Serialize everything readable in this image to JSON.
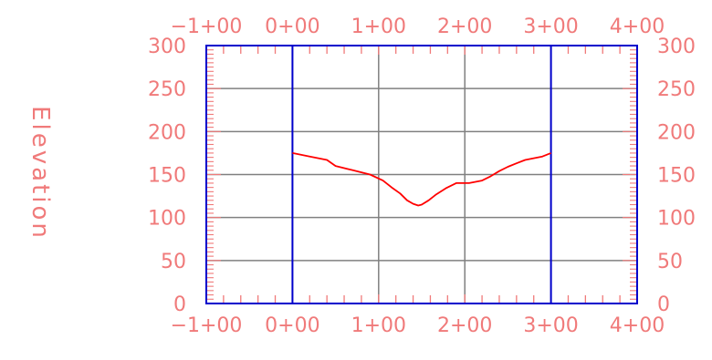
{
  "chart_data": {
    "type": "line",
    "title": "",
    "ylabel": "Elevation",
    "xlabel": "",
    "x_tick_labels": [
      "−1+00",
      "0+00",
      "1+00",
      "2+00",
      "3+00",
      "4+00"
    ],
    "x_tick_values": [
      -100,
      0,
      100,
      200,
      300,
      400
    ],
    "y_tick_labels": [
      "0",
      "50",
      "100",
      "150",
      "200",
      "250",
      "300"
    ],
    "y_tick_values": [
      0,
      50,
      100,
      150,
      200,
      250,
      300
    ],
    "xlim": [
      -100,
      400
    ],
    "ylim": [
      0,
      300
    ],
    "grid": true,
    "frame_x": [
      0,
      300
    ],
    "series": [
      {
        "points": [
          [
            0,
            175
          ],
          [
            20,
            171
          ],
          [
            40,
            167
          ],
          [
            50,
            160
          ],
          [
            70,
            155
          ],
          [
            90,
            150
          ],
          [
            105,
            143
          ],
          [
            115,
            135
          ],
          [
            125,
            128
          ],
          [
            133,
            120
          ],
          [
            140,
            116
          ],
          [
            146,
            114
          ],
          [
            150,
            115
          ],
          [
            158,
            120
          ],
          [
            167,
            127
          ],
          [
            178,
            134
          ],
          [
            190,
            140
          ],
          [
            205,
            140
          ],
          [
            220,
            143
          ],
          [
            230,
            148
          ],
          [
            240,
            154
          ],
          [
            250,
            159
          ],
          [
            260,
            163
          ],
          [
            270,
            167
          ],
          [
            290,
            171
          ],
          [
            300,
            175
          ]
        ]
      }
    ],
    "colors": {
      "profile": "#ff0000",
      "frame": "#0000cc",
      "grid": "#808080",
      "text": "#f07a7a"
    }
  }
}
